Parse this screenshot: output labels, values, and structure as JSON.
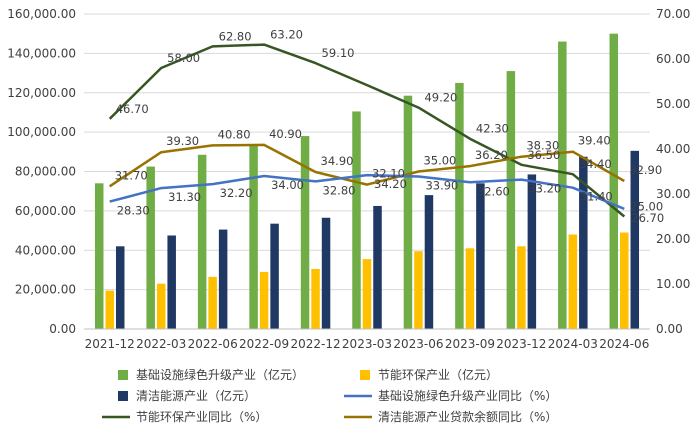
{
  "chart_data": {
    "type": "bar",
    "categories": [
      "2021-12",
      "2022-03",
      "2022-06",
      "2022-09",
      "2022-12",
      "2023-03",
      "2023-06",
      "2023-09",
      "2023-12",
      "2024-03",
      "2024-06"
    ],
    "y_left": {
      "lim": [
        0,
        160000
      ],
      "ticks": [
        "0.00",
        "20,000.00",
        "40,000.00",
        "60,000.00",
        "80,000.00",
        "100,000.00",
        "120,000.00",
        "140,000.00",
        "160,000.00"
      ]
    },
    "y_right": {
      "lim": [
        0,
        70
      ],
      "ticks": [
        "0.00",
        "10.00",
        "20.00",
        "30.00",
        "40.00",
        "50.00",
        "60.00",
        "70.00"
      ]
    },
    "grid": true,
    "legend_position": "bottom",
    "bar_series": [
      {
        "name": "基础设施绿色升级产业（亿元）",
        "color": "#70ad47",
        "values": [
          74000,
          82500,
          88500,
          93500,
          98000,
          110500,
          118500,
          125000,
          131000,
          146000,
          150000
        ]
      },
      {
        "name": "节能环保产业（亿元）",
        "color": "#ffc000",
        "values": [
          19500,
          23000,
          26500,
          29000,
          30500,
          35500,
          39500,
          41000,
          42000,
          48000,
          49000
        ]
      },
      {
        "name": "清洁能源产业（亿元）",
        "color": "#203864",
        "values": [
          42000,
          47500,
          50500,
          53500,
          56500,
          62500,
          68000,
          74000,
          78500,
          87500,
          90500
        ]
      }
    ],
    "line_series": [
      {
        "name": "基础设施绿色升级产业同比（%）",
        "color": "#4472c4",
        "values": [
          28.3,
          31.3,
          32.2,
          34.0,
          32.8,
          34.2,
          33.9,
          32.6,
          33.2,
          31.4,
          26.7
        ],
        "labels": [
          "28.30",
          "31.30",
          "32.20",
          "34.00",
          "32.80",
          "34.20",
          "33.90",
          "32.60",
          "33.20",
          "31.40",
          "26.70"
        ]
      },
      {
        "name": "节能环保产业同比（%）",
        "color": "#375623",
        "values": [
          46.7,
          58.0,
          62.8,
          63.2,
          59.1,
          54.2,
          49.2,
          42.3,
          36.5,
          34.4,
          25.0
        ],
        "labels": [
          "46.70",
          "58.00",
          "62.80",
          "63.20",
          "59.10",
          "",
          "49.20",
          "42.30",
          "36.50",
          "34.40",
          "25.00"
        ]
      },
      {
        "name": "清洁能源产业贷款余额同比（%）",
        "color": "#997300",
        "values": [
          31.7,
          39.3,
          40.8,
          40.9,
          34.9,
          32.1,
          35.0,
          36.2,
          38.3,
          39.4,
          32.9
        ],
        "labels": [
          "31.70",
          "39.30",
          "40.80",
          "40.90",
          "34.90",
          "32.10",
          "35.00",
          "36.20",
          "38.30",
          "39.40",
          "32.90"
        ]
      }
    ]
  }
}
